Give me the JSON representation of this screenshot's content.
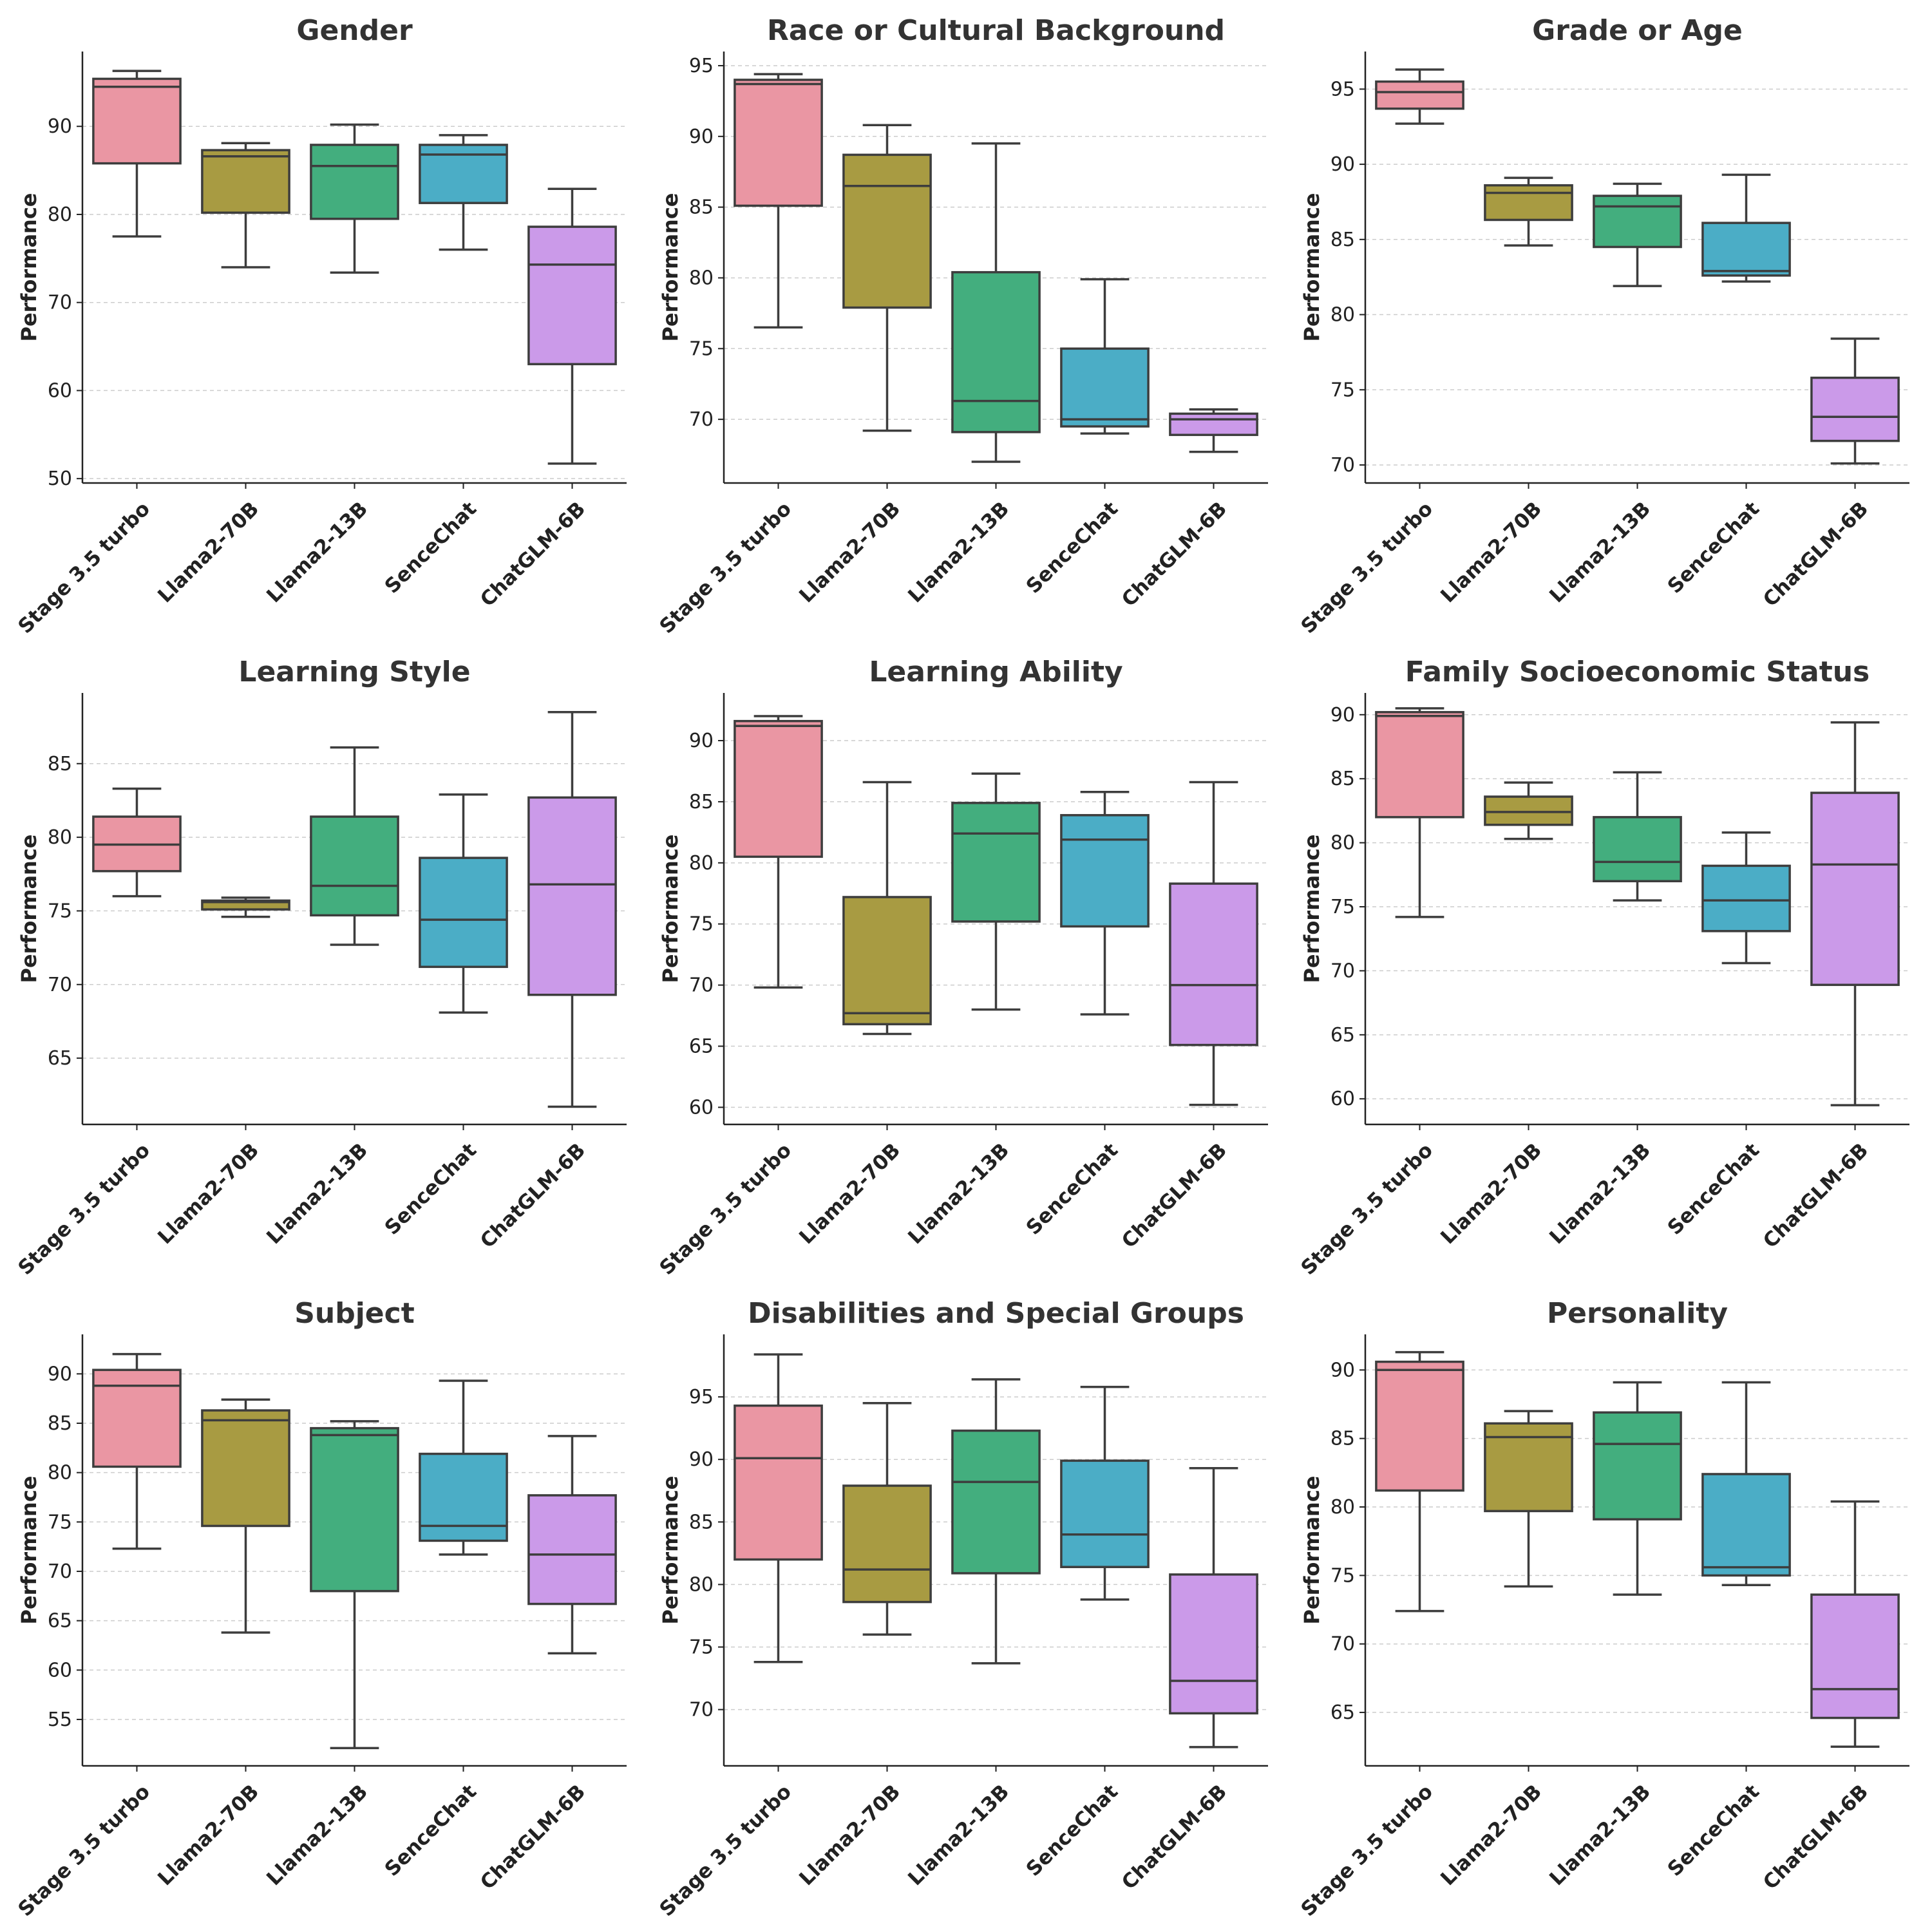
{
  "chart_data": [
    {
      "type": "box",
      "title": "Gender",
      "ylabel": "Performance",
      "categories": [
        "Stage 3.5 turbo",
        "Llama2-70B",
        "Llama2-13B",
        "SenceChat",
        "ChatGLM-6B"
      ],
      "ylim": [
        49.5,
        98.5
      ],
      "yticks": [
        50,
        60,
        70,
        80,
        90
      ],
      "boxes": [
        {
          "whisker_low": 77.5,
          "q1": 85.8,
          "median": 94.5,
          "q3": 95.4,
          "whisker_high": 96.3
        },
        {
          "whisker_low": 74.0,
          "q1": 80.2,
          "median": 86.6,
          "q3": 87.3,
          "whisker_high": 88.1
        },
        {
          "whisker_low": 73.4,
          "q1": 79.5,
          "median": 85.5,
          "q3": 87.9,
          "whisker_high": 90.2
        },
        {
          "whisker_low": 76.0,
          "q1": 81.3,
          "median": 86.8,
          "q3": 87.9,
          "whisker_high": 89.0
        },
        {
          "whisker_low": 51.7,
          "q1": 63.0,
          "median": 74.3,
          "q3": 78.6,
          "whisker_high": 82.9
        }
      ]
    },
    {
      "type": "box",
      "title": "Race or Cultural Background",
      "ylabel": "Performance",
      "categories": [
        "Stage 3.5 turbo",
        "Llama2-70B",
        "Llama2-13B",
        "SenceChat",
        "ChatGLM-6B"
      ],
      "ylim": [
        65.5,
        96.0
      ],
      "yticks": [
        70,
        75,
        80,
        85,
        90,
        95
      ],
      "boxes": [
        {
          "whisker_low": 76.5,
          "q1": 85.1,
          "median": 93.7,
          "q3": 94.0,
          "whisker_high": 94.4
        },
        {
          "whisker_low": 69.2,
          "q1": 77.9,
          "median": 86.5,
          "q3": 88.7,
          "whisker_high": 90.8
        },
        {
          "whisker_low": 67.0,
          "q1": 69.1,
          "median": 71.3,
          "q3": 80.4,
          "whisker_high": 89.5
        },
        {
          "whisker_low": 69.0,
          "q1": 69.5,
          "median": 70.0,
          "q3": 75.0,
          "whisker_high": 79.9
        },
        {
          "whisker_low": 67.7,
          "q1": 68.9,
          "median": 70.0,
          "q3": 70.4,
          "whisker_high": 70.7
        }
      ]
    },
    {
      "type": "box",
      "title": "Grade or Age",
      "ylabel": "Performance",
      "categories": [
        "Stage 3.5 turbo",
        "Llama2-70B",
        "Llama2-13B",
        "SenceChat",
        "ChatGLM-6B"
      ],
      "ylim": [
        68.8,
        97.5
      ],
      "yticks": [
        70,
        75,
        80,
        85,
        90,
        95
      ],
      "boxes": [
        {
          "whisker_low": 92.7,
          "q1": 93.7,
          "median": 94.8,
          "q3": 95.5,
          "whisker_high": 96.3
        },
        {
          "whisker_low": 84.6,
          "q1": 86.3,
          "median": 88.1,
          "q3": 88.6,
          "whisker_high": 89.1
        },
        {
          "whisker_low": 81.9,
          "q1": 84.5,
          "median": 87.2,
          "q3": 87.9,
          "whisker_high": 88.7
        },
        {
          "whisker_low": 82.2,
          "q1": 82.6,
          "median": 82.9,
          "q3": 86.1,
          "whisker_high": 89.3
        },
        {
          "whisker_low": 70.1,
          "q1": 71.6,
          "median": 73.2,
          "q3": 75.8,
          "whisker_high": 78.4
        }
      ]
    },
    {
      "type": "box",
      "title": "Learning Style",
      "ylabel": "Performance",
      "categories": [
        "Stage 3.5 turbo",
        "Llama2-70B",
        "Llama2-13B",
        "SenceChat",
        "ChatGLM-6B"
      ],
      "ylim": [
        60.5,
        89.8
      ],
      "yticks": [
        65,
        70,
        75,
        80,
        85
      ],
      "boxes": [
        {
          "whisker_low": 76.0,
          "q1": 77.7,
          "median": 79.5,
          "q3": 81.4,
          "whisker_high": 83.3
        },
        {
          "whisker_low": 74.6,
          "q1": 75.1,
          "median": 75.6,
          "q3": 75.7,
          "whisker_high": 75.9
        },
        {
          "whisker_low": 72.7,
          "q1": 74.7,
          "median": 76.7,
          "q3": 81.4,
          "whisker_high": 86.1
        },
        {
          "whisker_low": 68.1,
          "q1": 71.2,
          "median": 74.4,
          "q3": 78.6,
          "whisker_high": 82.9
        },
        {
          "whisker_low": 61.7,
          "q1": 69.3,
          "median": 76.8,
          "q3": 82.7,
          "whisker_high": 88.5
        }
      ]
    },
    {
      "type": "box",
      "title": "Learning Ability",
      "ylabel": "Performance",
      "categories": [
        "Stage 3.5 turbo",
        "Llama2-70B",
        "Llama2-13B",
        "SenceChat",
        "ChatGLM-6B"
      ],
      "ylim": [
        58.6,
        93.9
      ],
      "yticks": [
        60,
        65,
        70,
        75,
        80,
        85,
        90
      ],
      "boxes": [
        {
          "whisker_low": 69.8,
          "q1": 80.5,
          "median": 91.2,
          "q3": 91.6,
          "whisker_high": 92.0
        },
        {
          "whisker_low": 66.0,
          "q1": 66.8,
          "median": 67.7,
          "q3": 77.2,
          "whisker_high": 86.6
        },
        {
          "whisker_low": 68.0,
          "q1": 75.2,
          "median": 82.4,
          "q3": 84.9,
          "whisker_high": 87.3
        },
        {
          "whisker_low": 67.6,
          "q1": 74.8,
          "median": 81.9,
          "q3": 83.9,
          "whisker_high": 85.8
        },
        {
          "whisker_low": 60.2,
          "q1": 65.1,
          "median": 70.0,
          "q3": 78.3,
          "whisker_high": 86.6
        }
      ]
    },
    {
      "type": "box",
      "title": "Family Socioeconomic Status",
      "ylabel": "Performance",
      "categories": [
        "Stage 3.5 turbo",
        "Llama2-70B",
        "Llama2-13B",
        "SenceChat",
        "ChatGLM-6B"
      ],
      "ylim": [
        58.0,
        91.7
      ],
      "yticks": [
        60,
        65,
        70,
        75,
        80,
        85,
        90
      ],
      "boxes": [
        {
          "whisker_low": 74.2,
          "q1": 82.0,
          "median": 89.9,
          "q3": 90.2,
          "whisker_high": 90.5
        },
        {
          "whisker_low": 80.3,
          "q1": 81.4,
          "median": 82.4,
          "q3": 83.6,
          "whisker_high": 84.7
        },
        {
          "whisker_low": 75.5,
          "q1": 77.0,
          "median": 78.5,
          "q3": 82.0,
          "whisker_high": 85.5
        },
        {
          "whisker_low": 70.6,
          "q1": 73.1,
          "median": 75.5,
          "q3": 78.2,
          "whisker_high": 80.8
        },
        {
          "whisker_low": 59.5,
          "q1": 68.9,
          "median": 78.3,
          "q3": 83.9,
          "whisker_high": 89.4
        }
      ]
    },
    {
      "type": "box",
      "title": "Subject",
      "ylabel": "Performance",
      "categories": [
        "Stage 3.5 turbo",
        "Llama2-70B",
        "Llama2-13B",
        "SenceChat",
        "ChatGLM-6B"
      ],
      "ylim": [
        50.3,
        94.0
      ],
      "yticks": [
        55,
        60,
        65,
        70,
        75,
        80,
        85,
        90
      ],
      "boxes": [
        {
          "whisker_low": 72.3,
          "q1": 80.6,
          "median": 88.8,
          "q3": 90.4,
          "whisker_high": 92.0
        },
        {
          "whisker_low": 63.8,
          "q1": 74.6,
          "median": 85.3,
          "q3": 86.3,
          "whisker_high": 87.4
        },
        {
          "whisker_low": 52.1,
          "q1": 68.0,
          "median": 83.8,
          "q3": 84.5,
          "whisker_high": 85.2
        },
        {
          "whisker_low": 71.7,
          "q1": 73.1,
          "median": 74.6,
          "q3": 81.9,
          "whisker_high": 89.3
        },
        {
          "whisker_low": 61.7,
          "q1": 66.7,
          "median": 71.7,
          "q3": 77.7,
          "whisker_high": 83.7
        }
      ]
    },
    {
      "type": "box",
      "title": "Disabilities and Special Groups",
      "ylabel": "Performance",
      "categories": [
        "Stage 3.5 turbo",
        "Llama2-70B",
        "Llama2-13B",
        "SenceChat",
        "ChatGLM-6B"
      ],
      "ylim": [
        65.5,
        100.0
      ],
      "yticks": [
        70,
        75,
        80,
        85,
        90,
        95
      ],
      "boxes": [
        {
          "whisker_low": 73.8,
          "q1": 82.0,
          "median": 90.1,
          "q3": 94.3,
          "whisker_high": 98.4
        },
        {
          "whisker_low": 76.0,
          "q1": 78.6,
          "median": 81.2,
          "q3": 87.9,
          "whisker_high": 94.5
        },
        {
          "whisker_low": 73.7,
          "q1": 80.9,
          "median": 88.2,
          "q3": 92.3,
          "whisker_high": 96.4
        },
        {
          "whisker_low": 78.8,
          "q1": 81.4,
          "median": 84.0,
          "q3": 89.9,
          "whisker_high": 95.8
        },
        {
          "whisker_low": 67.0,
          "q1": 69.7,
          "median": 72.3,
          "q3": 80.8,
          "whisker_high": 89.3
        }
      ]
    },
    {
      "type": "box",
      "title": "Personality",
      "ylabel": "Performance",
      "categories": [
        "Stage 3.5 turbo",
        "Llama2-70B",
        "Llama2-13B",
        "SenceChat",
        "ChatGLM-6B"
      ],
      "ylim": [
        61.1,
        92.6
      ],
      "yticks": [
        65,
        70,
        75,
        80,
        85,
        90
      ],
      "boxes": [
        {
          "whisker_low": 72.4,
          "q1": 81.2,
          "median": 90.0,
          "q3": 90.6,
          "whisker_high": 91.3
        },
        {
          "whisker_low": 74.2,
          "q1": 79.7,
          "median": 85.1,
          "q3": 86.1,
          "whisker_high": 87.0
        },
        {
          "whisker_low": 73.6,
          "q1": 79.1,
          "median": 84.6,
          "q3": 86.9,
          "whisker_high": 89.1
        },
        {
          "whisker_low": 74.3,
          "q1": 75.0,
          "median": 75.6,
          "q3": 82.4,
          "whisker_high": 89.1
        },
        {
          "whisker_low": 62.5,
          "q1": 64.6,
          "median": 66.7,
          "q3": 73.6,
          "whisker_high": 80.4
        }
      ]
    }
  ],
  "colors": {
    "series": [
      "#ea96a3",
      "#a89b42",
      "#43ae7e",
      "#4badc6",
      "#cb9ae9"
    ],
    "box_edge": "#3d3d3d",
    "grid": "#cccccc",
    "axis": "#222222"
  }
}
